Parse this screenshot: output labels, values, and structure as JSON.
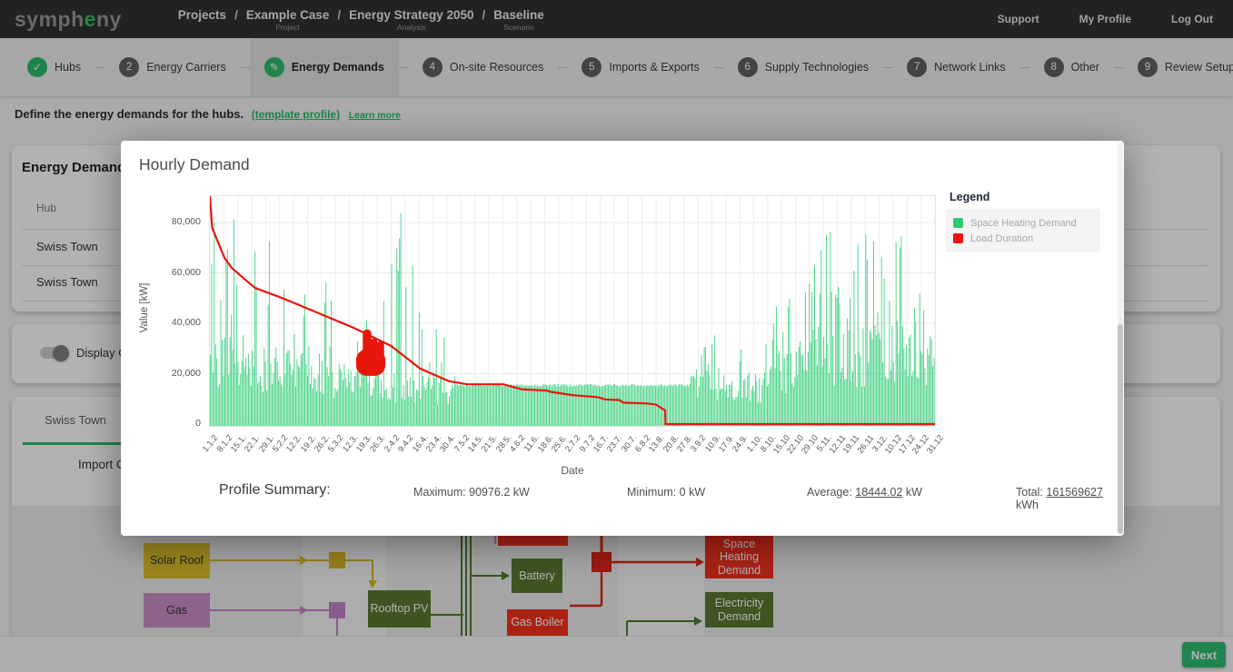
{
  "header": {
    "logo_prefix": "symph",
    "logo_accent": "e",
    "logo_suffix": "ny",
    "breadcrumb": [
      {
        "label": "Projects",
        "sub": ""
      },
      {
        "label": "Example Case",
        "sub": "Project"
      },
      {
        "label": "Energy Strategy 2050",
        "sub": "Analysis"
      },
      {
        "label": "Baseline",
        "sub": "Scenario"
      }
    ],
    "links": [
      "Support",
      "My Profile",
      "Log Out"
    ]
  },
  "stepper": {
    "steps": [
      {
        "num": "1",
        "label": "Hubs",
        "state": "done"
      },
      {
        "num": "2",
        "label": "Energy Carriers",
        "state": "todo"
      },
      {
        "num": "3",
        "label": "Energy Demands",
        "state": "active"
      },
      {
        "num": "4",
        "label": "On-site Resources",
        "state": "todo"
      },
      {
        "num": "5",
        "label": "Imports & Exports",
        "state": "todo"
      },
      {
        "num": "6",
        "label": "Supply Technologies",
        "state": "todo"
      },
      {
        "num": "7",
        "label": "Network Links",
        "state": "todo"
      },
      {
        "num": "8",
        "label": "Other",
        "state": "todo"
      },
      {
        "num": "9",
        "label": "Review Setup",
        "state": "todo"
      }
    ]
  },
  "instruction": {
    "text": "Define the energy demands for the hubs.",
    "link1": "(template profile)",
    "link2": "Learn more"
  },
  "background": {
    "card1": {
      "title": "Energy Demands",
      "column": "Hub",
      "rows": [
        "Swiss Town",
        "Swiss Town"
      ]
    },
    "card2": {
      "toggle_label": "Display GIS"
    },
    "card3": {
      "tab": "Swiss Town",
      "partial_text": "Import Ca"
    },
    "diagram": {
      "colors": {
        "yellow": "#dfc02c",
        "purple": "#cb8fc6",
        "green_dark": "#5a7a31",
        "red": "#f5321f",
        "conn_yellow": "#d9b826",
        "conn_purple": "#c586c9",
        "conn_green": "#4e7a2e",
        "conn_red": "#e02817"
      },
      "nodes": [
        {
          "id": "solar-roof",
          "label": "Solar Roof",
          "color": "yellow",
          "text": "dark"
        },
        {
          "id": "gas",
          "label": "Gas",
          "color": "purple",
          "text": "dark"
        },
        {
          "id": "rooftop-pv",
          "label": "Rooftop PV",
          "color": "green_dark",
          "text": "light"
        },
        {
          "id": "battery",
          "label": "Battery",
          "color": "green_dark",
          "text": "light"
        },
        {
          "id": "gas-boiler",
          "label": "Gas Boiler",
          "color": "red",
          "text": "light"
        },
        {
          "id": "hidden-red",
          "label": "",
          "color": "red",
          "text": "light"
        },
        {
          "id": "space-heating-demand",
          "label": "Space Heating Demand",
          "color": "red",
          "text": "light"
        },
        {
          "id": "electricity-demand",
          "label": "Electricity Demand",
          "color": "green_dark",
          "text": "light"
        }
      ]
    }
  },
  "footer": {
    "next_label": "Next"
  },
  "modal": {
    "title": "Hourly Demand",
    "legend": {
      "title": "Legend",
      "items": [
        {
          "label": "Space Heating Demand",
          "color": "#2dc96e"
        },
        {
          "label": "Load Duration",
          "color": "#ee1111"
        }
      ]
    },
    "summary": {
      "title": "Profile Summary:",
      "maximum": "Maximum: 90976.2 kW",
      "minimum": "Minimum: 0 kW",
      "average_label": "Average:",
      "average_value": "18444.02",
      "average_unit": "kW",
      "total_label": "Total:",
      "total_value": "161569627",
      "total_unit": "kWh"
    }
  },
  "chart_data": {
    "type": "line",
    "title": "Hourly Demand",
    "xlabel": "Date",
    "ylabel": "Value [kW]",
    "ylim": [
      0,
      91000
    ],
    "grid": true,
    "legend_position": "right",
    "yticks": [
      0,
      20000,
      40000,
      60000,
      80000
    ],
    "ytick_labels": [
      "0",
      "20,000",
      "40,000",
      "60,000",
      "80,000"
    ],
    "xtick_labels": [
      "1.1.2",
      "8.1.2",
      "15.1.",
      "22.1.",
      "29.1.",
      "5.2.2",
      "12.2.",
      "19.2.",
      "26.2.",
      "5.3.2",
      "12.3.",
      "19.3.",
      "26.3.",
      "2.4.2",
      "9.4.2",
      "16.4.",
      "23.4.",
      "30.4.",
      "7.5.2",
      "14.5.",
      "21.5.",
      "28.5.",
      "4.6.2",
      "11.6.",
      "18.6.",
      "25.6.",
      "2.7.2",
      "9.7.2",
      "16.7.",
      "23.7.",
      "30.7.",
      "6.8.2",
      "13.8.",
      "20.8.",
      "27.8.",
      "3.9.2",
      "10.9.",
      "17.9.",
      "24.9.",
      "1.10.",
      "8.10.",
      "15.10",
      "22.10",
      "29.10",
      "5.11.",
      "12.11",
      "19.11",
      "26.11",
      "3.12.",
      "10.12",
      "17.12",
      "24.12",
      "31.12"
    ],
    "series": [
      {
        "name": "Space Heating Demand",
        "color": "#31ce77",
        "render": "hourly-spikes",
        "weekly_typical_kw": [
          28000,
          30000,
          28000,
          26000,
          25000,
          25000,
          24000,
          22000,
          21000,
          20000,
          18000,
          17000,
          16000,
          16000,
          15600,
          15600,
          15600,
          15600,
          15500,
          15500,
          15500,
          15500,
          15500,
          15500,
          15500,
          15500,
          15500,
          15500,
          15500,
          15500,
          15500,
          15500,
          15500,
          15500,
          15500,
          15500,
          15500,
          15500,
          15500,
          15500,
          15500,
          16000,
          21000,
          24000,
          26000,
          28000,
          30000,
          28000,
          30000,
          31000,
          30000,
          30000,
          28000
        ],
        "weekly_peak_kw": [
          85000,
          86000,
          83000,
          85000,
          72000,
          75000,
          72000,
          62000,
          55000,
          60000,
          46000,
          42000,
          48000,
          60000,
          86000,
          62000,
          30000,
          45000,
          16200,
          16000,
          16000,
          16000,
          16000,
          16000,
          16000,
          16000,
          16000,
          16000,
          16000,
          16000,
          16000,
          16000,
          16000,
          16000,
          16000,
          16000,
          37000,
          37000,
          16000,
          36000,
          20000,
          45000,
          50000,
          55000,
          60000,
          78000,
          80000,
          75000,
          78000,
          80000,
          75000,
          78000,
          60000
        ]
      },
      {
        "name": "Load Duration",
        "color": "#e8170c",
        "render": "line",
        "x_fraction": [
          0,
          0.003,
          0.01,
          0.02,
          0.03,
          0.05,
          0.0625,
          0.1,
          0.15,
          0.2,
          0.25,
          0.29,
          0.33,
          0.355,
          0.405,
          0.43,
          0.465,
          0.47,
          0.5,
          0.535,
          0.545,
          0.565,
          0.57,
          0.6,
          0.615,
          0.628,
          0.6285,
          1
        ],
        "values_kw": [
          90976,
          78000,
          73000,
          66000,
          62000,
          57000,
          54000,
          50000,
          44000,
          38000,
          31000,
          22000,
          17000,
          15800,
          15800,
          13800,
          13300,
          12800,
          11500,
          10700,
          9800,
          9500,
          8500,
          8200,
          7800,
          5400,
          0,
          0
        ]
      }
    ],
    "summary": {
      "maximum_kw": 90976.2,
      "minimum_kw": 0,
      "average_kw": 18444.02,
      "total_kwh": 161569627
    }
  }
}
